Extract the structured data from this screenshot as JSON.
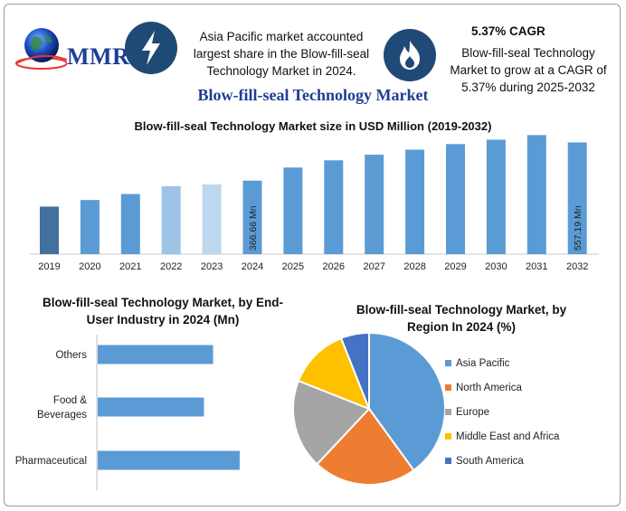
{
  "header": {
    "logo_text": "MMR",
    "fact1_text": "Asia Pacific market accounted largest share in the Blow-fill-seal Technology Market in 2024.",
    "fact2_title": "5.37% CAGR",
    "fact2_text": "Blow-fill-seal Technology Market to grow at a CAGR of 5.37% during 2025-2032",
    "icon1": "lightning-icon",
    "icon2": "flame-icon",
    "main_title": "Blow-fill-seal Technology Market"
  },
  "colors": {
    "brand_blue": "#1f3e94",
    "icon_bg": "#1f4a76",
    "bar_blue": "#5b9bd5",
    "bar_dark": "#41719c",
    "bar_light": "#9dc3e6",
    "bar_lighter": "#bdd7ee",
    "orange": "#ed7d31",
    "gray": "#a5a5a5",
    "yellow": "#ffc000",
    "navy": "#4472c4"
  },
  "chart_data": [
    {
      "type": "bar",
      "title": "Blow-fill-seal Technology Market size in USD Million (2019-2032)",
      "categories": [
        "2019",
        "2020",
        "2021",
        "2022",
        "2023",
        "2024",
        "2025",
        "2026",
        "2027",
        "2028",
        "2029",
        "2030",
        "2031",
        "2032"
      ],
      "values": [
        237,
        270,
        300,
        339,
        348,
        366.66,
        432,
        468,
        496,
        521,
        549,
        571,
        594,
        557.19
      ],
      "data_labels": {
        "2024": "366.66 Mn",
        "2032": "557.19 Mn"
      },
      "grid": false
    },
    {
      "type": "bar",
      "orientation": "horizontal",
      "title": "Blow-fill-seal Technology Market, by End-User Industry in 2024 (Mn)",
      "categories": [
        "Others",
        "Food & Beverages",
        "Pharmaceutical"
      ],
      "values": [
        126,
        116,
        155
      ]
    },
    {
      "type": "pie",
      "title": "Blow-fill-seal Technology Market, by Region In 2024 (%)",
      "series": [
        {
          "name": "Asia Pacific",
          "value": 40,
          "color": "#5b9bd5"
        },
        {
          "name": "North America",
          "value": 22,
          "color": "#ed7d31"
        },
        {
          "name": "Europe",
          "value": 19,
          "color": "#a5a5a5"
        },
        {
          "name": "Middle East and Africa",
          "value": 13,
          "color": "#ffc000"
        },
        {
          "name": "South America",
          "value": 6,
          "color": "#4472c4"
        }
      ],
      "legend_position": "right"
    }
  ]
}
